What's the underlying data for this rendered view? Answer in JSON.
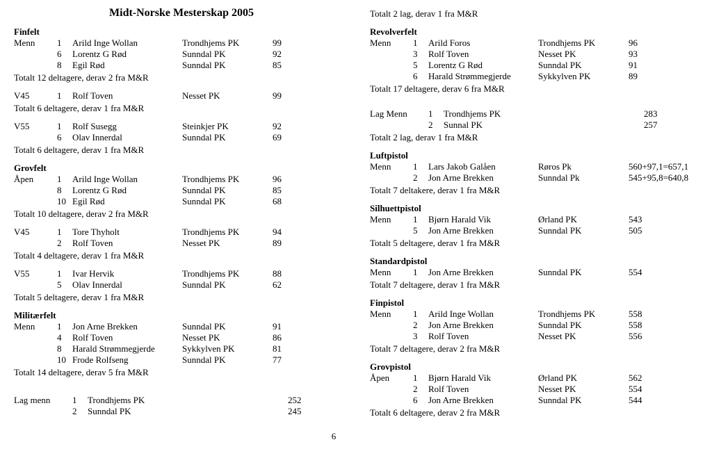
{
  "title": "Midt-Norske Mesterskap 2005",
  "left": {
    "sections": [
      {
        "heading": "Finfelt",
        "rows": [
          [
            "Menn",
            "1",
            "Arild Inge Wollan",
            "Trondhjems PK",
            "99"
          ],
          [
            "",
            "6",
            "Lorentz G Rød",
            "Sunndal PK",
            "92"
          ],
          [
            "",
            "8",
            "Egil Rød",
            "Sunndal PK",
            "85"
          ]
        ],
        "footer": "Totalt 12 deltagere, derav 2 fra M&R"
      },
      {
        "rows": [
          [
            "V45",
            "1",
            "Rolf Toven",
            "Nesset PK",
            "99"
          ]
        ],
        "footer": "Totalt 6 deltagere, derav 1 fra M&R"
      },
      {
        "rows": [
          [
            "V55",
            "1",
            "Rolf Susegg",
            "Steinkjer PK",
            "92"
          ],
          [
            "",
            "6",
            "Olav Innerdal",
            "Sunndal PK",
            "69"
          ]
        ],
        "footer": "Totalt 6 deltagere, derav 1 fra M&R"
      },
      {
        "heading": "Grovfelt",
        "rows": [
          [
            "Åpen",
            "1",
            "Arild Inge Wollan",
            "Trondhjems PK",
            "96"
          ],
          [
            "",
            "8",
            "Lorentz G Rød",
            "Sunndal PK",
            "85"
          ],
          [
            "",
            "10",
            "Egil Rød",
            "Sunndal PK",
            "68"
          ]
        ],
        "footer": "Totalt 10 deltagere, derav 2 fra M&R"
      },
      {
        "rows": [
          [
            "V45",
            "1",
            "Tore Thyholt",
            "Trondhjems PK",
            "94"
          ],
          [
            "",
            "2",
            "Rolf Toven",
            "Nesset PK",
            "89"
          ]
        ],
        "footer": "Totalt 4 deltagere, derav 1 fra M&R"
      },
      {
        "rows": [
          [
            "V55",
            "1",
            "Ivar Hervik",
            "Trondhjems PK",
            "88"
          ],
          [
            "",
            "5",
            "Olav Innerdal",
            "Sunndal PK",
            "62"
          ]
        ],
        "footer": "Totalt 5 deltagere, derav 1 fra M&R"
      },
      {
        "heading": "Militærfelt",
        "rows": [
          [
            "Menn",
            "1",
            "Jon Arne Brekken",
            "Sunndal PK",
            "91"
          ],
          [
            "",
            "4",
            "Rolf Toven",
            "Nesset PK",
            "86"
          ],
          [
            "",
            "8",
            "Harald Strømmegjerde",
            "Sykkylven PK",
            "81"
          ],
          [
            "",
            "10",
            "Frode Rolfseng",
            "Sunndal PK",
            "77"
          ]
        ],
        "footer": "Totalt 14 deltagere, derav 5 fra M&R"
      }
    ],
    "lag": {
      "rows": [
        [
          "Lag menn",
          "1",
          "Trondhjems PK",
          "252"
        ],
        [
          "",
          "2",
          "Sunndal PK",
          "245"
        ]
      ]
    }
  },
  "right": {
    "top_line": "Totalt 2 lag, derav 1 fra M&R",
    "sections": [
      {
        "heading": "Revolverfelt",
        "rows": [
          [
            "Menn",
            "1",
            "Arild Foros",
            "Trondhjems PK",
            "96"
          ],
          [
            "",
            "3",
            "Rolf Toven",
            "Nesset PK",
            "93"
          ],
          [
            "",
            "5",
            "Lorentz G Rød",
            "Sunndal PK",
            "91"
          ],
          [
            "",
            "6",
            "Harald Strømmegjerde",
            "Sykkylven PK",
            "89"
          ]
        ],
        "footer": "Totalt 17 deltagere, derav 6 fra M&R"
      }
    ],
    "lag": {
      "rows": [
        [
          "Lag Menn",
          "1",
          "Trondhjems PK",
          "283"
        ],
        [
          "",
          "2",
          "Sunnal PK",
          "257"
        ]
      ],
      "footer": "Totalt 2 lag, derav 1 fra M&R"
    },
    "sections2": [
      {
        "heading": "Luftpistol",
        "rows": [
          [
            "Menn",
            "1",
            "Lars Jakob Galåen",
            "Røros Pk",
            "560+97,1=657,1"
          ],
          [
            "",
            "2",
            "Jon Arne Brekken",
            "Sunndal Pk",
            "545+95,8=640,8"
          ]
        ],
        "footer": "Totalt 7 deltakere, derav 1 fra M&R"
      },
      {
        "heading": "Silhuettpistol",
        "rows": [
          [
            "Menn",
            "1",
            "Bjørn Harald Vik",
            "Ørland PK",
            "543"
          ],
          [
            "",
            "5",
            "Jon Arne Brekken",
            "Sunndal PK",
            "505"
          ]
        ],
        "footer": "Totalt 5 deltagere, derav 1 fra M&R"
      },
      {
        "heading": "Standardpistol",
        "rows": [
          [
            "Menn",
            "1",
            "Jon Arne Brekken",
            "Sunndal PK",
            "554"
          ]
        ],
        "footer": "Totalt 7 deltagere, derav 1 fra M&R"
      },
      {
        "heading": "Finpistol",
        "rows": [
          [
            "Menn",
            "1",
            "Arild Inge Wollan",
            "Trondhjems PK",
            "558"
          ],
          [
            "",
            "2",
            "Jon Arne Brekken",
            "Sunndal PK",
            "558"
          ],
          [
            "",
            "3",
            "Rolf Toven",
            "Nesset PK",
            "556"
          ]
        ],
        "footer": "Totalt 7 deltagere, derav 2 fra M&R"
      },
      {
        "heading": "Grovpistol",
        "rows": [
          [
            "Åpen",
            "1",
            "Bjørn Harald Vik",
            "Ørland PK",
            "562"
          ],
          [
            "",
            "2",
            "Rolf Toven",
            "Nesset PK",
            "554"
          ],
          [
            "",
            "6",
            "Jon Arne Brekken",
            "Sunndal PK",
            "544"
          ]
        ],
        "footer": "Totalt 6 deltagere, derav 2 fra M&R"
      }
    ]
  },
  "pagenum": "6"
}
